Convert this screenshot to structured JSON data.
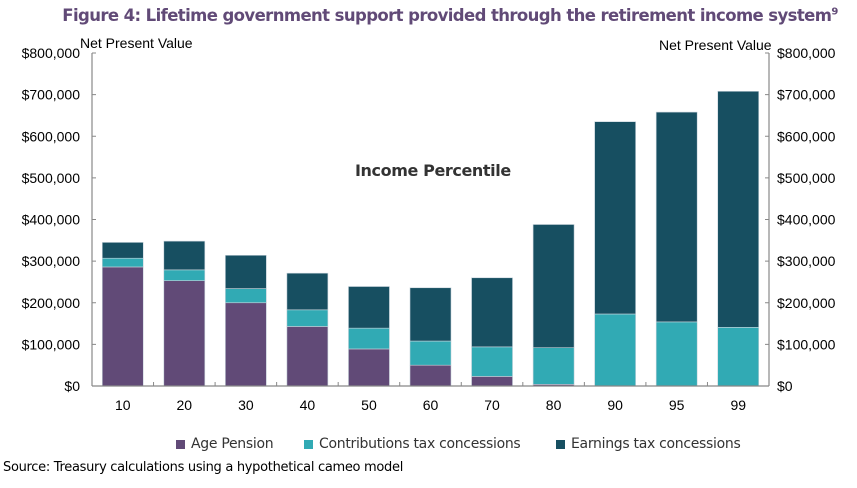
{
  "chart_data": {
    "type": "bar",
    "stacked": true,
    "title": "Figure 4: Lifetime government support provided through the retirement income system",
    "title_superscript": "9",
    "xlabel": "Income Percentile",
    "ylabel_left": "Net Present Value",
    "ylabel_right": "Net Present Value",
    "categories": [
      "10",
      "20",
      "30",
      "40",
      "50",
      "60",
      "70",
      "80",
      "90",
      "95",
      "99"
    ],
    "ylim": [
      0,
      800000
    ],
    "yticks": [
      "$0",
      "$100,000",
      "$200,000",
      "$300,000",
      "$400,000",
      "$500,000",
      "$600,000",
      "$700,000",
      "$800,000"
    ],
    "grid": false,
    "legend": "bottom",
    "series": [
      {
        "name": "Age Pension",
        "color": "#614A77",
        "values": [
          286000,
          253000,
          200000,
          143000,
          89000,
          50000,
          23000,
          4000,
          0,
          0,
          0
        ]
      },
      {
        "name": "Contributions tax concessions",
        "color": "#31AAB4",
        "values": [
          21000,
          26000,
          34000,
          40000,
          50000,
          58000,
          71000,
          88000,
          173000,
          154000,
          141000
        ]
      },
      {
        "name": "Earnings tax concessions",
        "color": "#174F61",
        "values": [
          38000,
          69000,
          80000,
          88000,
          100000,
          128000,
          166000,
          296000,
          462000,
          504000,
          567000
        ]
      }
    ]
  },
  "source": "Source: Treasury calculations using a hypothetical cameo model"
}
